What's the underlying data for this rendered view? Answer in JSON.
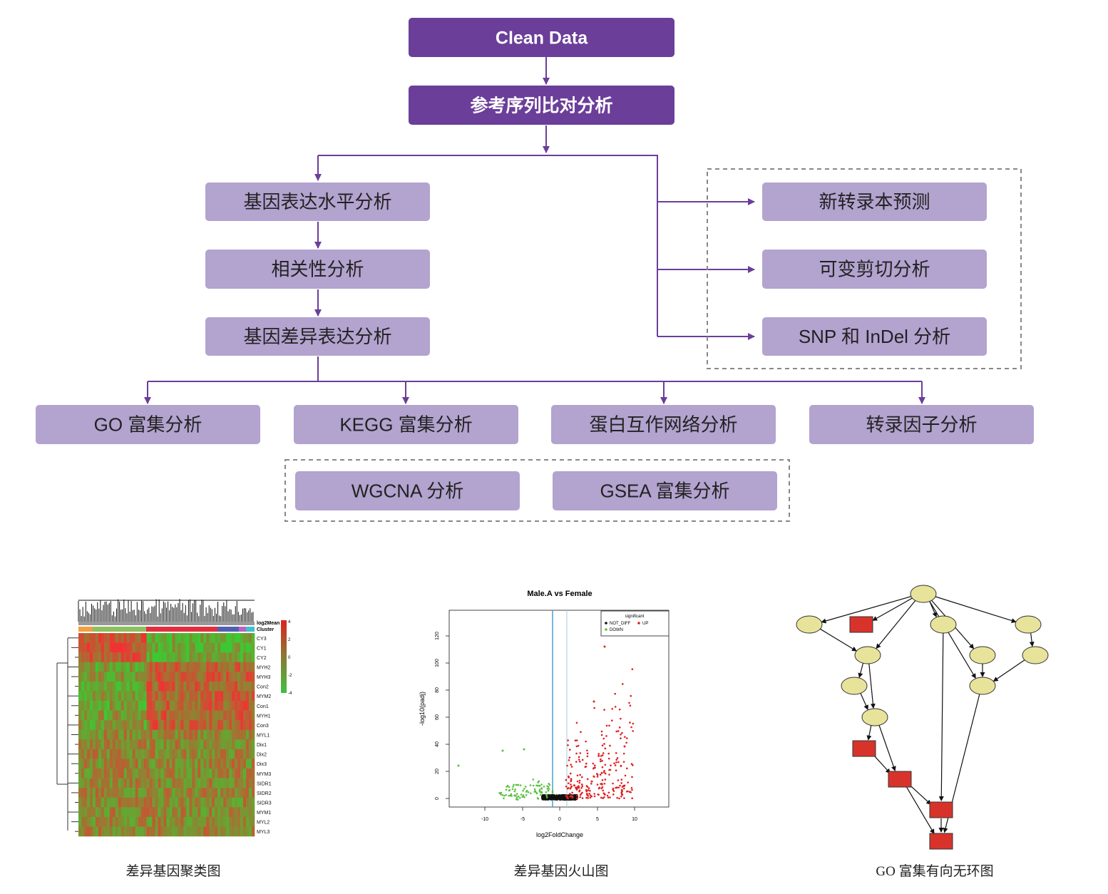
{
  "nodes": [
    {
      "label": "Clean Data"
    },
    {
      "label": "参考序列比对分析"
    },
    {
      "label": "基因表达水平分析"
    },
    {
      "label": "相关性分析"
    },
    {
      "label": "基因差异表达分析"
    },
    {
      "label": "新转录本预测"
    },
    {
      "label": "可变剪切分析"
    },
    {
      "label": "SNP 和 InDel 分析"
    },
    {
      "label": "GO 富集分析"
    },
    {
      "label": "KEGG 富集分析"
    },
    {
      "label": "蛋白互作网络分析"
    },
    {
      "label": "转录因子分析"
    },
    {
      "label": "WGCNA 分析"
    },
    {
      "label": "GSEA 富集分析"
    }
  ],
  "figures": [
    {
      "caption": "差异基因聚类图",
      "legend_title": "log2Mean",
      "cluster_label": "Cluster",
      "scale_labels": [
        "4",
        "2",
        "0",
        "-2",
        "-4"
      ],
      "row_labels": [
        "CY3",
        "CY1",
        "CY2",
        "MYH2",
        "MYH3",
        "Con2",
        "MYM2",
        "Con1",
        "MYH1",
        "Con3",
        "MYL1",
        "Dix1",
        "Dix2",
        "Dix3",
        "MYM3",
        "SIDR1",
        "SIDR2",
        "SIDR3",
        "MYM1",
        "MYL2",
        "MYL3"
      ]
    },
    {
      "caption": "差异基因火山图",
      "title": "Male.A vs Female",
      "x_label": "log2FoldChange",
      "y_label": "-log10(padj)",
      "x_tick_labels": [
        "-10",
        "-5",
        "0",
        "5",
        "10"
      ],
      "y_tick_labels": [
        "0",
        "20",
        "40",
        "60",
        "80",
        "100",
        "120"
      ],
      "legend_title": "significant",
      "legend_items": [
        "NOT_DIFF",
        "UP",
        "DOWN"
      ]
    },
    {
      "caption": "GO 富集有向无环图"
    }
  ]
}
